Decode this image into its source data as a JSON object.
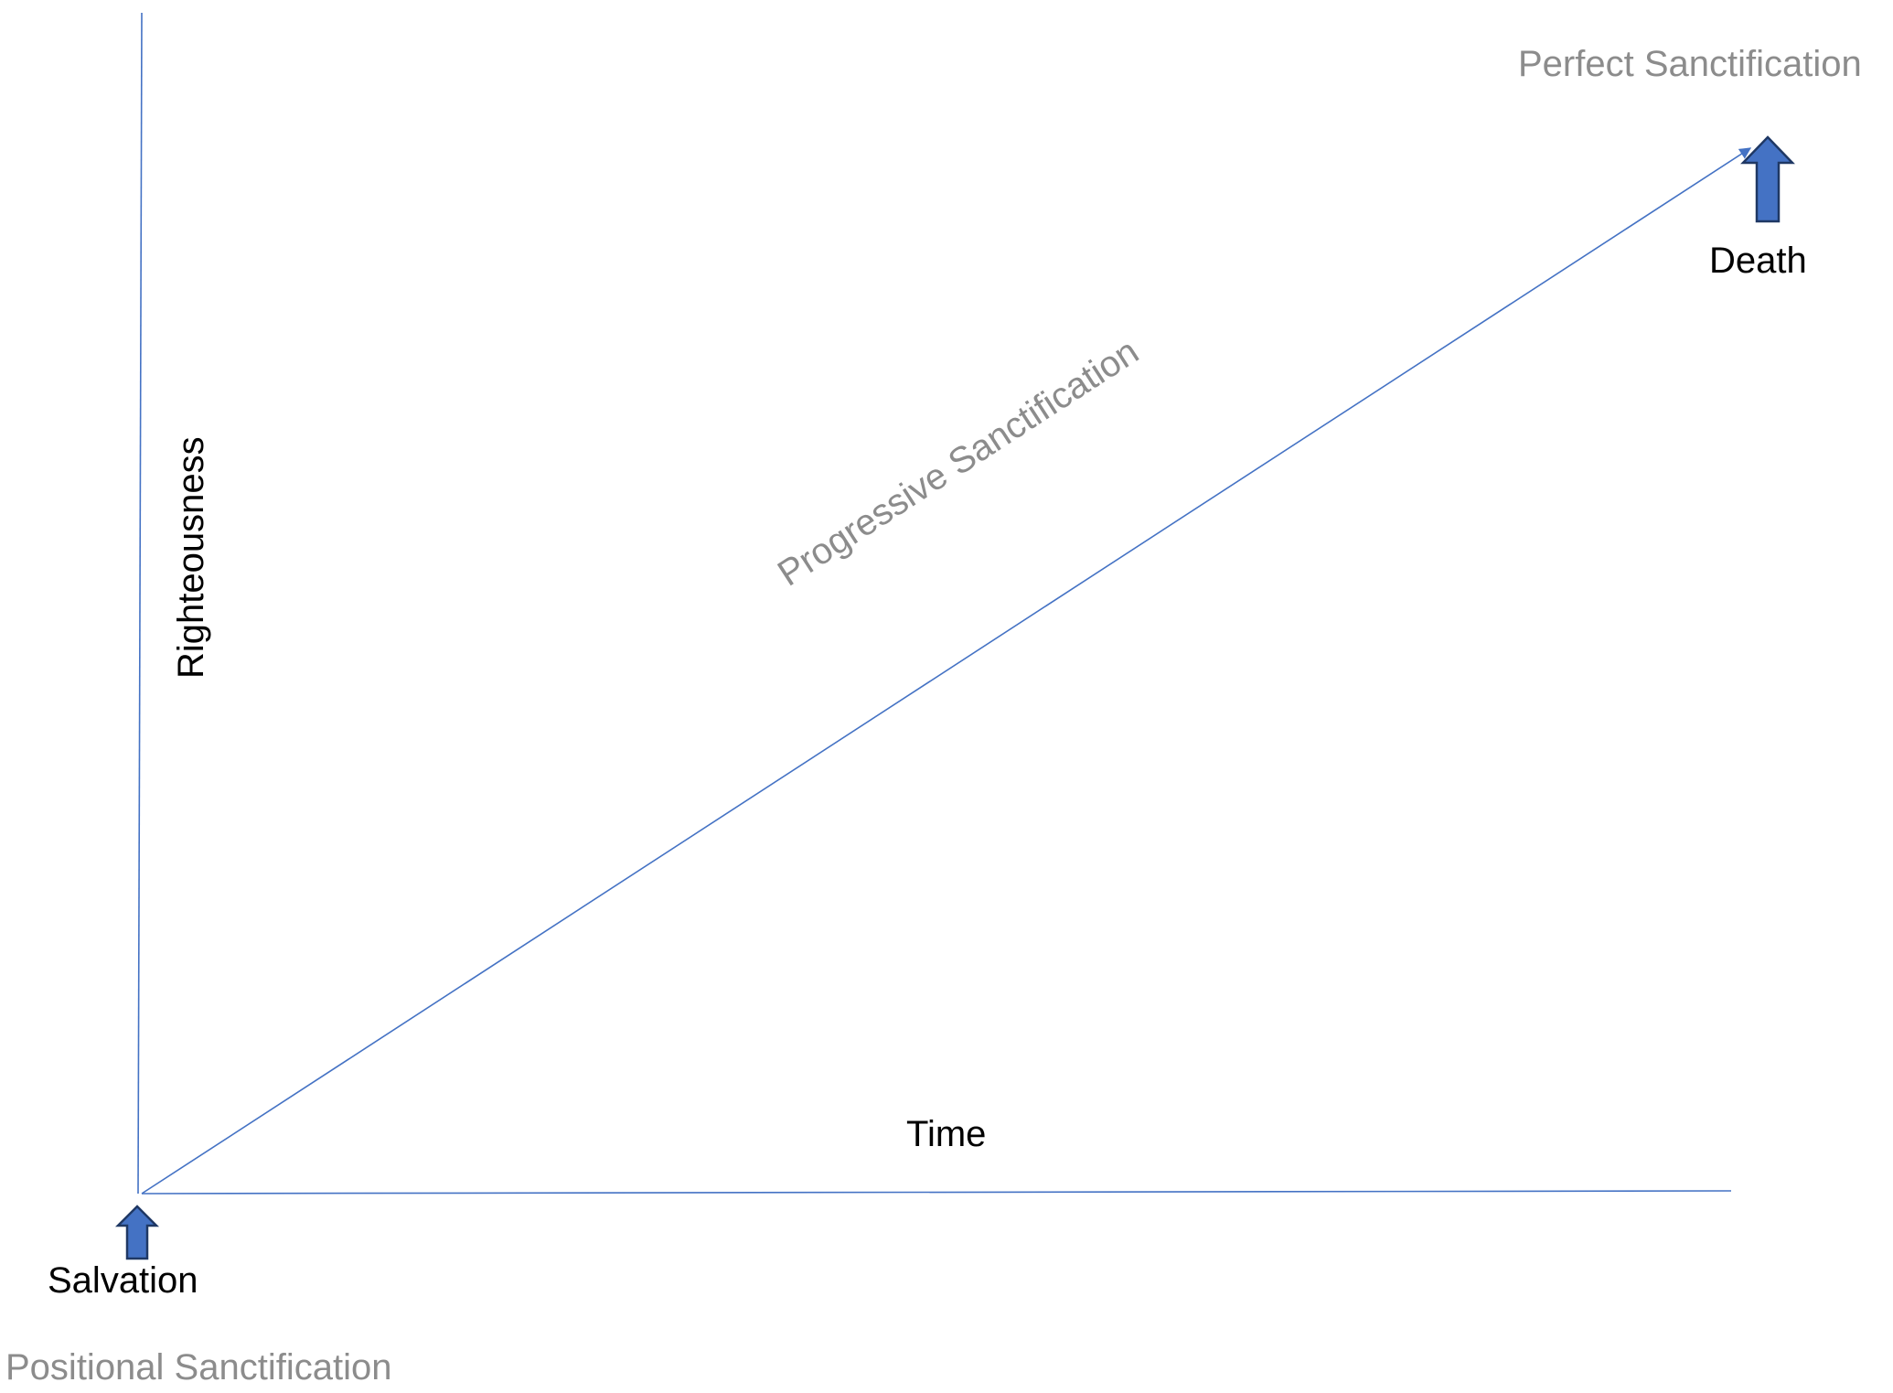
{
  "diagram": {
    "colors": {
      "axis_line": "#4472C4",
      "arrow_fill": "#4472C4",
      "arrow_stroke": "#1F3864",
      "dark_text": "#000000",
      "grey_text": "#8C8C8C",
      "background": "#FFFFFF"
    },
    "labels": {
      "perfect_sanctification": "Perfect Sanctification",
      "death": "Death",
      "progressive_sanctification": "Progressive Sanctification",
      "righteousness": "Righteousness",
      "time": "Time",
      "salvation": "Salvation",
      "positional_sanctification": "Positional Sanctification"
    },
    "icons": {
      "salvation_marker": "up-arrow-icon",
      "death_marker": "up-arrow-icon"
    }
  }
}
